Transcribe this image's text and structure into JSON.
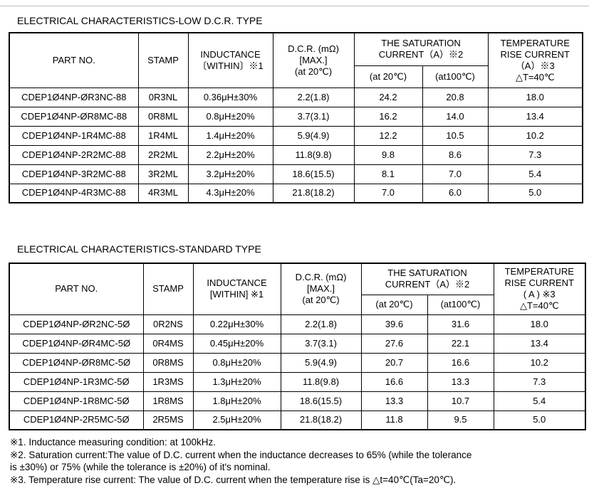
{
  "tables": [
    {
      "title": "ELECTRICAL CHARACTERISTICS-LOW D.C.R. TYPE",
      "headers": {
        "part_no": "PART NO.",
        "stamp": "STAMP",
        "inductance": [
          "INDUCTANCE",
          "〔WITHIN〕※1"
        ],
        "dcr": [
          "D.C.R. (mΩ)",
          "[MAX.]",
          "(at 20℃)"
        ],
        "saturation": [
          "THE SATURATION",
          "CURRENT（A）※2"
        ],
        "sat_20": "(at 20℃)",
        "sat_100": "(at100℃)",
        "temperature": [
          "TEMPERATURE",
          "RISE CURRENT",
          "（A）※3",
          "△T=40℃"
        ]
      },
      "rows": [
        {
          "part": "CDEP1Ø4NP-ØR3NC-88",
          "stamp": "0R3NL",
          "ind": "0.36μH±30%",
          "dcr": "2.2(1.8)",
          "sat20": "24.2",
          "sat100": "20.8",
          "temp": "18.0"
        },
        {
          "part": "CDEP1Ø4NP-ØR8MC-88",
          "stamp": "0R8ML",
          "ind": "0.8μH±20%",
          "dcr": "3.7(3.1)",
          "sat20": "16.2",
          "sat100": "14.0",
          "temp": "13.4"
        },
        {
          "part": "CDEP1Ø4NP-1R4MC-88",
          "stamp": "1R4ML",
          "ind": "1.4μH±20%",
          "dcr": "5.9(4.9)",
          "sat20": "12.2",
          "sat100": "10.5",
          "temp": "10.2"
        },
        {
          "part": "CDEP1Ø4NP-2R2MC-88",
          "stamp": "2R2ML",
          "ind": "2.2μH±20%",
          "dcr": "11.8(9.8)",
          "sat20": "9.8",
          "sat100": "8.6",
          "temp": "7.3"
        },
        {
          "part": "CDEP1Ø4NP-3R2MC-88",
          "stamp": "3R2ML",
          "ind": "3.2μH±20%",
          "dcr": "18.6(15.5)",
          "sat20": "8.1",
          "sat100": "7.0",
          "temp": "5.4"
        },
        {
          "part": "CDEP1Ø4NP-4R3MC-88",
          "stamp": "4R3ML",
          "ind": "4.3μH±20%",
          "dcr": "21.8(18.2)",
          "sat20": "7.0",
          "sat100": "6.0",
          "temp": "5.0"
        }
      ]
    },
    {
      "title": "ELECTRICAL CHARACTERISTICS-STANDARD TYPE",
      "headers": {
        "part_no": "PART NO.",
        "stamp": "STAMP",
        "inductance": [
          "INDUCTANCE",
          "[WITHIN] ※1"
        ],
        "dcr": [
          "D.C.R. (mΩ)",
          "[MAX.]",
          "(at 20℃)"
        ],
        "saturation": [
          "THE SATURATION",
          "CURRENT（A）※2"
        ],
        "sat_20": "(at 20℃)",
        "sat_100": "(at100℃)",
        "temperature": [
          "TEMPERATURE",
          "RISE CURRENT",
          "( A ) ※3",
          "△T=40℃"
        ]
      },
      "rows": [
        {
          "part": "CDEP1Ø4NP-ØR2NC-5Ø",
          "stamp": "0R2NS",
          "ind": "0.22μH±30%",
          "dcr": "2.2(1.8)",
          "sat20": "39.6",
          "sat100": "31.6",
          "temp": "18.0"
        },
        {
          "part": "CDEP1Ø4NP-ØR4MC-5Ø",
          "stamp": "0R4MS",
          "ind": "0.45μH±20%",
          "dcr": "3.7(3.1)",
          "sat20": "27.6",
          "sat100": "22.1",
          "temp": "13.4"
        },
        {
          "part": "CDEP1Ø4NP-ØR8MC-5Ø",
          "stamp": "0R8MS",
          "ind": "0.8μH±20%",
          "dcr": "5.9(4.9)",
          "sat20": "20.7",
          "sat100": "16.6",
          "temp": "10.2"
        },
        {
          "part": "CDEP1Ø4NP-1R3MC-5Ø",
          "stamp": "1R3MS",
          "ind": "1.3μH±20%",
          "dcr": "11.8(9.8)",
          "sat20": "16.6",
          "sat100": "13.3",
          "temp": "7.3"
        },
        {
          "part": "CDEP1Ø4NP-1R8MC-5Ø",
          "stamp": "1R8MS",
          "ind": "1.8μH±20%",
          "dcr": "18.6(15.5)",
          "sat20": "13.3",
          "sat100": "10.7",
          "temp": "5.4"
        },
        {
          "part": "CDEP1Ø4NP-2R5MC-5Ø",
          "stamp": "2R5MS",
          "ind": "2.5μH±20%",
          "dcr": "21.8(18.2)",
          "sat20": "11.8",
          "sat100": "9.5",
          "temp": "5.0"
        }
      ]
    }
  ],
  "notes": [
    "※1. Inductance measuring condition:  at 100kHz.",
    "※2. Saturation current:The value of  D.C. current when the inductance decreases to 65% (while the tolerance",
    "is ±30%) or 75% (while the tolerance is ±20%) of it's nominal.",
    "※3. Temperature rise current: The value of D.C. current when the temperature rise is △t=40℃(Ta=20℃)."
  ]
}
